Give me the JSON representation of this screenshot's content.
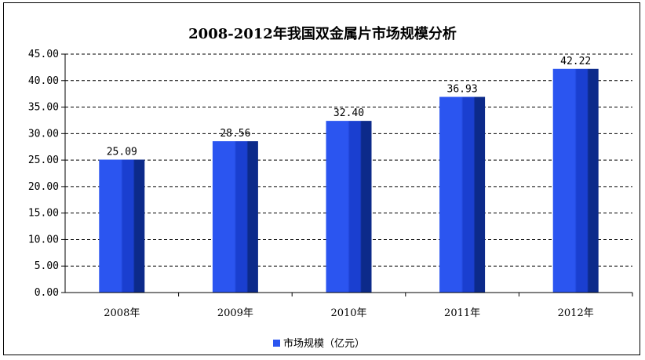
{
  "chart_data": {
    "type": "bar",
    "title": "2008-2012年我国双金属片市场规模分析",
    "categories": [
      "2008年",
      "2009年",
      "2010年",
      "2011年",
      "2012年"
    ],
    "series": [
      {
        "name": "市场规模（亿元）",
        "values": [
          25.09,
          28.56,
          32.4,
          36.93,
          42.22
        ],
        "data_labels": [
          "25.09",
          "28.56",
          "32.40",
          "36.93",
          "42.22"
        ]
      }
    ],
    "ylim": [
      0,
      45
    ],
    "yticks": [
      "0.00",
      "5.00",
      "10.00",
      "15.00",
      "20.00",
      "25.00",
      "30.00",
      "35.00",
      "40.00",
      "45.00"
    ],
    "grid": true,
    "legend": "bottom",
    "colors": {
      "bar_front": "#2b55f0",
      "bar_mid": "#1a3fd0",
      "bar_side": "#0c2a8a"
    }
  }
}
